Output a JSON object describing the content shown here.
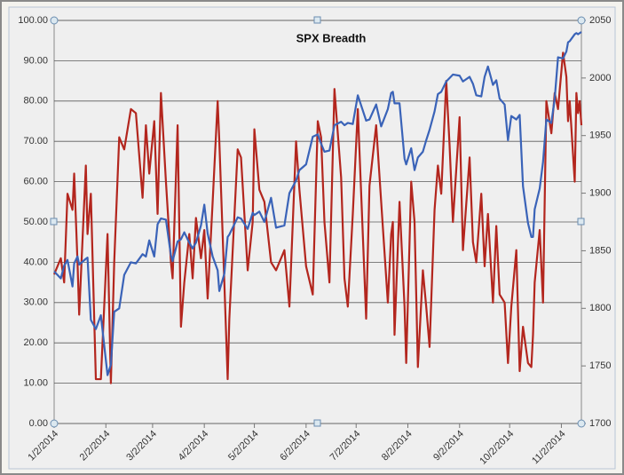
{
  "chart_data": {
    "type": "line",
    "title": "SPX Breadth",
    "x": [
      "1/2/2014",
      "1/6/2014",
      "1/8/2014",
      "1/10/2014",
      "1/13/2014",
      "1/14/2014",
      "1/16/2014",
      "1/17/2014",
      "1/21/2014",
      "1/22/2014",
      "1/24/2014",
      "1/27/2014",
      "1/30/2014",
      "2/3/2014",
      "2/5/2014",
      "2/7/2014",
      "2/10/2014",
      "2/13/2014",
      "2/17/2014",
      "2/20/2014",
      "2/24/2014",
      "2/26/2014",
      "2/28/2014",
      "3/3/2014",
      "3/5/2014",
      "3/7/2014",
      "3/10/2014",
      "3/13/2014",
      "3/14/2014",
      "3/17/2014",
      "3/19/2014",
      "3/21/2014",
      "3/24/2014",
      "3/26/2014",
      "3/28/2014",
      "3/31/2014",
      "4/2/2014",
      "4/4/2014",
      "4/7/2014",
      "4/10/2014",
      "4/11/2014",
      "4/14/2014",
      "4/16/2014",
      "4/17/2014",
      "4/22/2014",
      "4/24/2014",
      "4/28/2014",
      "5/1/2014",
      "5/2/2014",
      "5/5/2014",
      "5/8/2014",
      "5/12/2014",
      "5/15/2014",
      "5/20/2014",
      "5/23/2014",
      "5/27/2014",
      "5/29/2014",
      "6/2/2014",
      "6/6/2014",
      "6/9/2014",
      "6/11/2014",
      "6/13/2014",
      "6/16/2014",
      "6/19/2014",
      "6/23/2014",
      "6/25/2014",
      "6/27/2014",
      "6/30/2014",
      "7/3/2014",
      "7/8/2014",
      "7/10/2014",
      "7/14/2014",
      "7/17/2014",
      "7/21/2014",
      "7/23/2014",
      "7/24/2014",
      "7/25/2014",
      "7/28/2014",
      "7/31/2014",
      "8/1/2014",
      "8/4/2014",
      "8/6/2014",
      "8/8/2014",
      "8/11/2014",
      "8/13/2014",
      "8/15/2014",
      "8/18/2014",
      "8/20/2014",
      "8/22/2014",
      "8/25/2014",
      "8/27/2014",
      "8/29/2014",
      "9/2/2014",
      "9/4/2014",
      "9/8/2014",
      "9/10/2014",
      "9/12/2014",
      "9/15/2014",
      "9/17/2014",
      "9/19/2014",
      "9/22/2014",
      "9/24/2014",
      "9/26/2014",
      "9/29/2014",
      "10/1/2014",
      "10/3/2014",
      "10/6/2014",
      "10/8/2014",
      "10/10/2014",
      "10/13/2014",
      "10/15/2014",
      "10/16/2014",
      "10/17/2014",
      "10/20/2014",
      "10/22/2014",
      "10/24/2014",
      "10/27/2014",
      "10/29/2014",
      "10/31/2014",
      "11/3/2014",
      "11/5/2014",
      "11/6/2014",
      "11/7/2014",
      "11/10/2014",
      "11/11/2014",
      "11/12/2014",
      "11/13/2014",
      "11/14/2014"
    ],
    "series": [
      {
        "color": "#b3261e",
        "values": [
          37,
          41,
          35,
          57,
          53,
          62,
          40,
          27,
          64,
          47,
          57,
          11,
          11,
          47,
          10,
          40,
          71,
          68,
          78,
          77,
          56,
          74,
          62,
          75,
          52,
          82,
          60,
          40,
          36,
          74,
          24,
          35,
          47,
          36,
          51,
          41,
          48,
          31,
          55,
          80,
          70,
          35,
          11,
          26,
          68,
          66,
          38,
          50,
          73,
          58,
          55,
          40,
          38,
          43,
          29,
          70,
          58,
          39,
          32,
          75,
          71,
          50,
          35,
          83,
          61,
          36,
          29,
          52,
          78,
          26,
          59,
          74,
          55,
          30,
          47,
          50,
          22,
          55,
          29,
          15,
          60,
          50,
          14,
          38,
          29,
          19,
          53,
          64,
          57,
          85,
          69,
          50,
          76,
          43,
          66,
          45,
          40,
          57,
          39,
          52,
          30,
          49,
          32,
          30,
          15,
          29,
          43,
          13,
          24,
          15,
          14,
          22,
          35,
          48,
          30,
          80,
          72,
          82,
          78,
          92,
          86,
          75,
          80,
          60,
          82,
          77,
          80,
          74
        ]
      },
      {
        "color": "#3a63b8",
        "axis": "y2",
        "values": [
          1832,
          1826,
          1837,
          1842,
          1819,
          1839,
          1845,
          1838,
          1843,
          1844,
          1790,
          1782,
          1794,
          1742,
          1751,
          1797,
          1800,
          1829,
          1840,
          1839,
          1847,
          1845,
          1859,
          1845,
          1873,
          1878,
          1877,
          1846,
          1841,
          1858,
          1860,
          1866,
          1857,
          1852,
          1857,
          1872,
          1890,
          1865,
          1845,
          1833,
          1815,
          1830,
          1862,
          1864,
          1879,
          1878,
          1869,
          1883,
          1881,
          1884,
          1875,
          1896,
          1870,
          1872,
          1900,
          1911,
          1920,
          1925,
          1949,
          1951,
          1943,
          1936,
          1937,
          1959,
          1962,
          1959,
          1961,
          1960,
          1985,
          1963,
          1964,
          1977,
          1958,
          1973,
          1987,
          1988,
          1978,
          1978,
          1930,
          1925,
          1939,
          1920,
          1931,
          1936,
          1946,
          1955,
          1971,
          1986,
          1988,
          1997,
          2000,
          2003,
          2002,
          1997,
          2001,
          1995,
          1985,
          1984,
          2001,
          2010,
          1994,
          1998,
          1982,
          1977,
          1946,
          1967,
          1964,
          1968,
          1906,
          1874,
          1862,
          1862,
          1886,
          1904,
          1927,
          1964,
          1961,
          1982,
          2018,
          2017,
          2023,
          2031,
          2032,
          2038,
          2039,
          2038,
          2039,
          2040
        ]
      }
    ],
    "xlim": [
      "1/2/2014",
      "11/14/2014"
    ],
    "xticks": [
      "1/2/2014",
      "2/2/2014",
      "3/2/2014",
      "4/2/2014",
      "5/2/2014",
      "6/2/2014",
      "7/2/2014",
      "8/2/2014",
      "9/2/2014",
      "10/2/2014",
      "11/2/2014"
    ],
    "ylim": [
      0,
      100
    ],
    "yticks": [
      {
        "value": 0,
        "label": "0.00"
      },
      {
        "value": 10,
        "label": "10.00"
      },
      {
        "value": 20,
        "label": "20.00"
      },
      {
        "value": 30,
        "label": "30.00"
      },
      {
        "value": 40,
        "label": "40.00"
      },
      {
        "value": 50,
        "label": "50.00"
      },
      {
        "value": 60,
        "label": "60.00"
      },
      {
        "value": 70,
        "label": "70.00"
      },
      {
        "value": 80,
        "label": "80.00"
      },
      {
        "value": 90,
        "label": "90.00"
      },
      {
        "value": 100,
        "label": "100.00"
      }
    ],
    "y2lim": [
      1700,
      2050
    ],
    "y2ticks": [
      1700,
      1750,
      1800,
      1850,
      1900,
      1950,
      2000,
      2050
    ],
    "grid": true
  }
}
